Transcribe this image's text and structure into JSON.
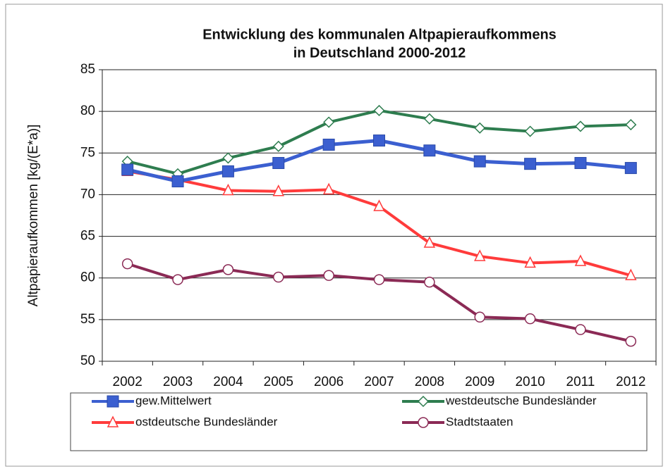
{
  "chart_data": {
    "type": "line",
    "title_lines": [
      "Entwicklung des kommunalen Altpapieraufkommens",
      "in Deutschland 2000-2012"
    ],
    "y_label": "Altpapieraufkommen [kg/(E*a)]",
    "categories": [
      "2002",
      "2003",
      "2004",
      "2005",
      "2006",
      "2007",
      "2008",
      "2009",
      "2010",
      "2011",
      "2012"
    ],
    "ylim": [
      50,
      85
    ],
    "yticks": [
      50,
      55,
      60,
      65,
      70,
      75,
      80,
      85
    ],
    "grid": true,
    "series": [
      {
        "name": "gew.Mittelwert",
        "color": "#3b5fd0",
        "marker": "square",
        "values": [
          73.0,
          71.6,
          72.8,
          73.8,
          76.0,
          76.5,
          75.3,
          74.0,
          73.7,
          73.8,
          73.2
        ]
      },
      {
        "name": "westdeutsche Bundesländer",
        "color": "#2e7d4f",
        "marker": "diamond",
        "values": [
          74.0,
          72.5,
          74.4,
          75.8,
          78.7,
          80.1,
          79.1,
          78.0,
          77.6,
          78.2,
          78.4
        ]
      },
      {
        "name": "ostdeutsche Bundesländer",
        "color": "#ff3b3b",
        "marker": "triangle",
        "values": [
          72.8,
          71.8,
          70.5,
          70.4,
          70.6,
          68.6,
          64.2,
          62.6,
          61.8,
          62.0,
          60.3
        ]
      },
      {
        "name": "Stadtstaaten",
        "color": "#8b2a55",
        "marker": "circle",
        "values": [
          61.7,
          59.8,
          61.0,
          60.1,
          60.3,
          59.8,
          59.5,
          55.3,
          55.1,
          53.8,
          52.4
        ]
      }
    ]
  }
}
